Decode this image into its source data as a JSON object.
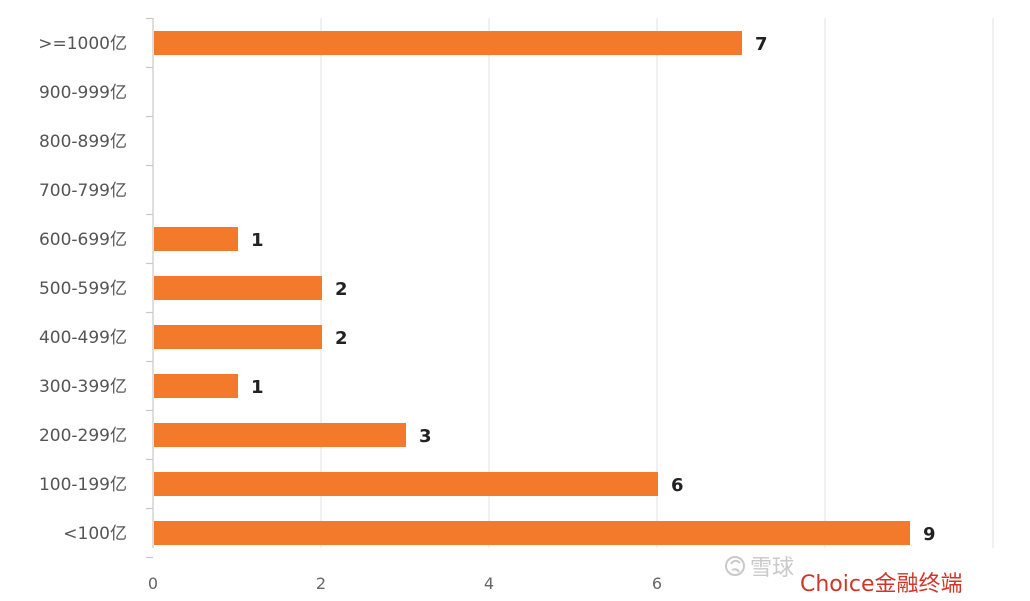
{
  "chart_data": {
    "type": "bar",
    "orientation": "horizontal",
    "categories": [
      ">=1000亿",
      "900-999亿",
      "800-899亿",
      "700-799亿",
      "600-699亿",
      "500-599亿",
      "400-499亿",
      "300-399亿",
      "200-299亿",
      "100-199亿",
      "<100亿"
    ],
    "values": [
      7,
      0,
      0,
      0,
      1,
      2,
      2,
      1,
      3,
      6,
      9
    ],
    "data_labels": [
      "7",
      "",
      "",
      "",
      "1",
      "2",
      "2",
      "1",
      "3",
      "6",
      "9"
    ],
    "x_ticks": [
      "0",
      "2",
      "4",
      "6"
    ],
    "xlim": [
      0,
      10
    ],
    "title": "",
    "xlabel": "",
    "ylabel": "",
    "grid": true,
    "legend": "none",
    "colors": {
      "bar": "#F47A2B",
      "grid": "#e2e2e2",
      "axis": "#c8c8c8"
    }
  },
  "watermark": {
    "left_text": "雪球",
    "right_text": "Choice金融终端",
    "right_color": "#d0352a",
    "icon": "weibo-logo-icon"
  }
}
